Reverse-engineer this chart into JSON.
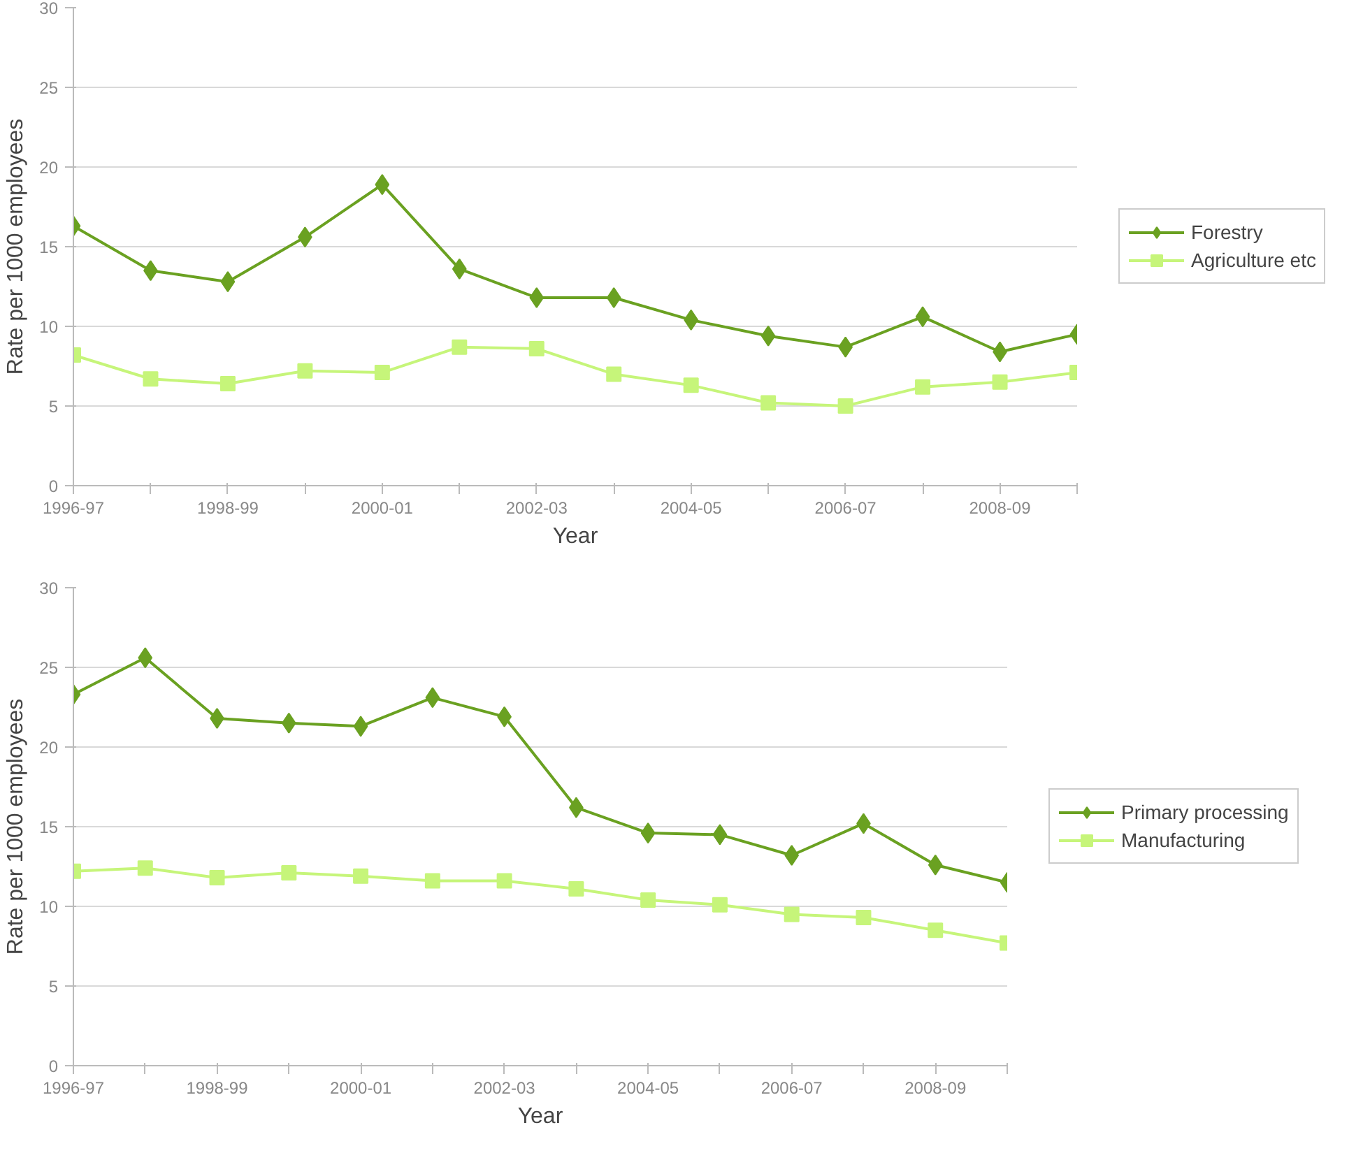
{
  "chart_data": [
    {
      "type": "line",
      "xlabel": "Year",
      "ylabel": "Rate per 1000 employees",
      "categories": [
        "1996-97",
        null,
        "1998-99",
        null,
        "2000-01",
        null,
        "2002-03",
        null,
        "2004-05",
        null,
        "2006-07",
        null,
        "2008-09",
        null
      ],
      "ylim": [
        0,
        30
      ],
      "yticks": [
        0,
        5,
        10,
        15,
        20,
        25,
        30
      ],
      "grid": "y",
      "legend": "right",
      "line_style": "solid",
      "series": [
        {
          "name": "Forestry",
          "color": "#6aa121",
          "marker": "diamond",
          "values": [
            16.3,
            13.5,
            12.8,
            15.6,
            18.9,
            13.6,
            11.8,
            11.8,
            10.4,
            9.4,
            8.7,
            10.6,
            8.4,
            9.5
          ]
        },
        {
          "name": "Agriculture etc",
          "color": "#c6f57a",
          "marker": "square",
          "values": [
            8.2,
            6.7,
            6.4,
            7.2,
            7.1,
            8.7,
            8.6,
            7.0,
            6.3,
            5.2,
            5.0,
            6.2,
            6.5,
            7.1
          ]
        }
      ]
    },
    {
      "type": "line",
      "xlabel": "Year",
      "ylabel": "Rate per 1000 employees",
      "categories": [
        "1996-97",
        null,
        "1998-99",
        null,
        "2000-01",
        null,
        "2002-03",
        null,
        "2004-05",
        null,
        "2006-07",
        null,
        "2008-09",
        null
      ],
      "ylim": [
        0,
        30
      ],
      "yticks": [
        0,
        5,
        10,
        15,
        20,
        25,
        30
      ],
      "grid": "y",
      "legend": "right",
      "line_style": "solid",
      "series": [
        {
          "name": "Primary processing",
          "color": "#6aa121",
          "marker": "diamond",
          "values": [
            23.3,
            25.6,
            21.8,
            21.5,
            21.3,
            23.1,
            21.9,
            16.2,
            14.6,
            14.5,
            13.2,
            15.2,
            12.6,
            11.5
          ]
        },
        {
          "name": "Manufacturing",
          "color": "#c6f57a",
          "marker": "square",
          "values": [
            12.2,
            12.4,
            11.8,
            12.1,
            11.9,
            11.6,
            11.6,
            11.1,
            10.4,
            10.1,
            9.5,
            9.3,
            8.5,
            7.7
          ]
        }
      ]
    }
  ]
}
